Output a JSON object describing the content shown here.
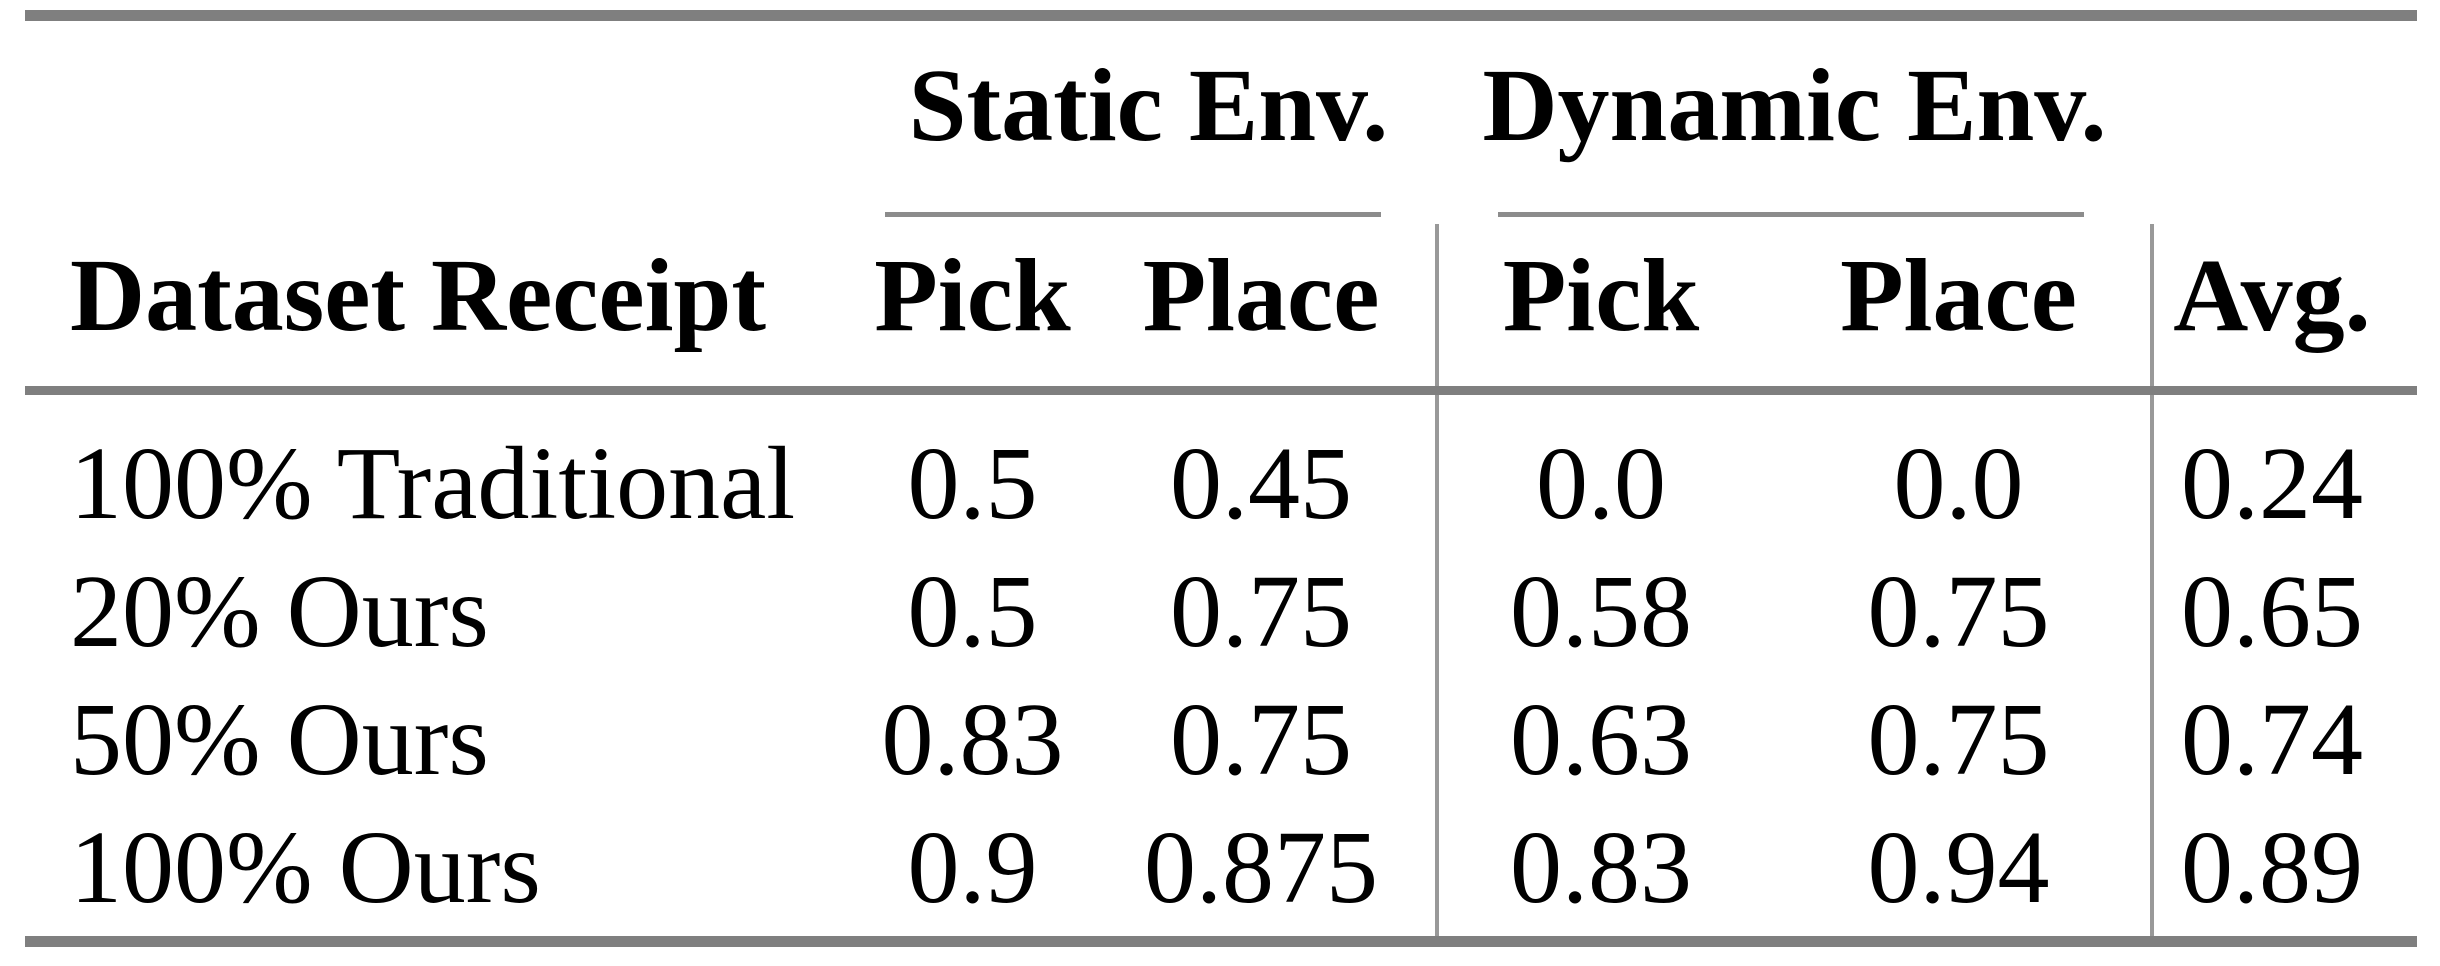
{
  "styles": {
    "background": "#ffffff",
    "text_color": "#000000",
    "thick_rule_color": "#7f7f7f",
    "thin_rule_color": "#8c8c8c",
    "vertical_rule_color": "#999999"
  },
  "table": {
    "group_header_row": {
      "static": "Static Env.",
      "dynamic": "Dynamic Env."
    },
    "header_row": {
      "dataset": "Dataset Receipt",
      "static_pick": "Pick",
      "static_place": "Place",
      "dynamic_pick": "Pick",
      "dynamic_place": "Place",
      "avg": "Avg."
    },
    "rows": [
      {
        "label": "100% Traditional",
        "cells": [
          "0.5",
          "0.45",
          "0.0",
          "0.0",
          "0.24"
        ]
      },
      {
        "label": "20% Ours",
        "cells": [
          "0.5",
          "0.75",
          "0.58",
          "0.75",
          "0.65"
        ]
      },
      {
        "label": "50% Ours",
        "cells": [
          "0.83",
          "0.75",
          "0.63",
          "0.75",
          "0.74"
        ]
      },
      {
        "label": "100% Ours",
        "cells": [
          "0.9",
          "0.875",
          "0.83",
          "0.94",
          "0.89"
        ]
      }
    ]
  },
  "chart_data": {
    "type": "table",
    "title": "",
    "column_groups": [
      "Static Env.",
      "Dynamic Env."
    ],
    "columns": [
      "Dataset Receipt",
      "Static Env. Pick",
      "Static Env. Place",
      "Dynamic Env. Pick",
      "Dynamic Env. Place",
      "Avg."
    ],
    "rows": [
      [
        "100% Traditional",
        0.5,
        0.45,
        0.0,
        0.0,
        0.24
      ],
      [
        "20% Ours",
        0.5,
        0.75,
        0.58,
        0.75,
        0.65
      ],
      [
        "50% Ours",
        0.83,
        0.75,
        0.63,
        0.75,
        0.74
      ],
      [
        "100% Ours",
        0.9,
        0.875,
        0.83,
        0.94,
        0.89
      ]
    ]
  }
}
